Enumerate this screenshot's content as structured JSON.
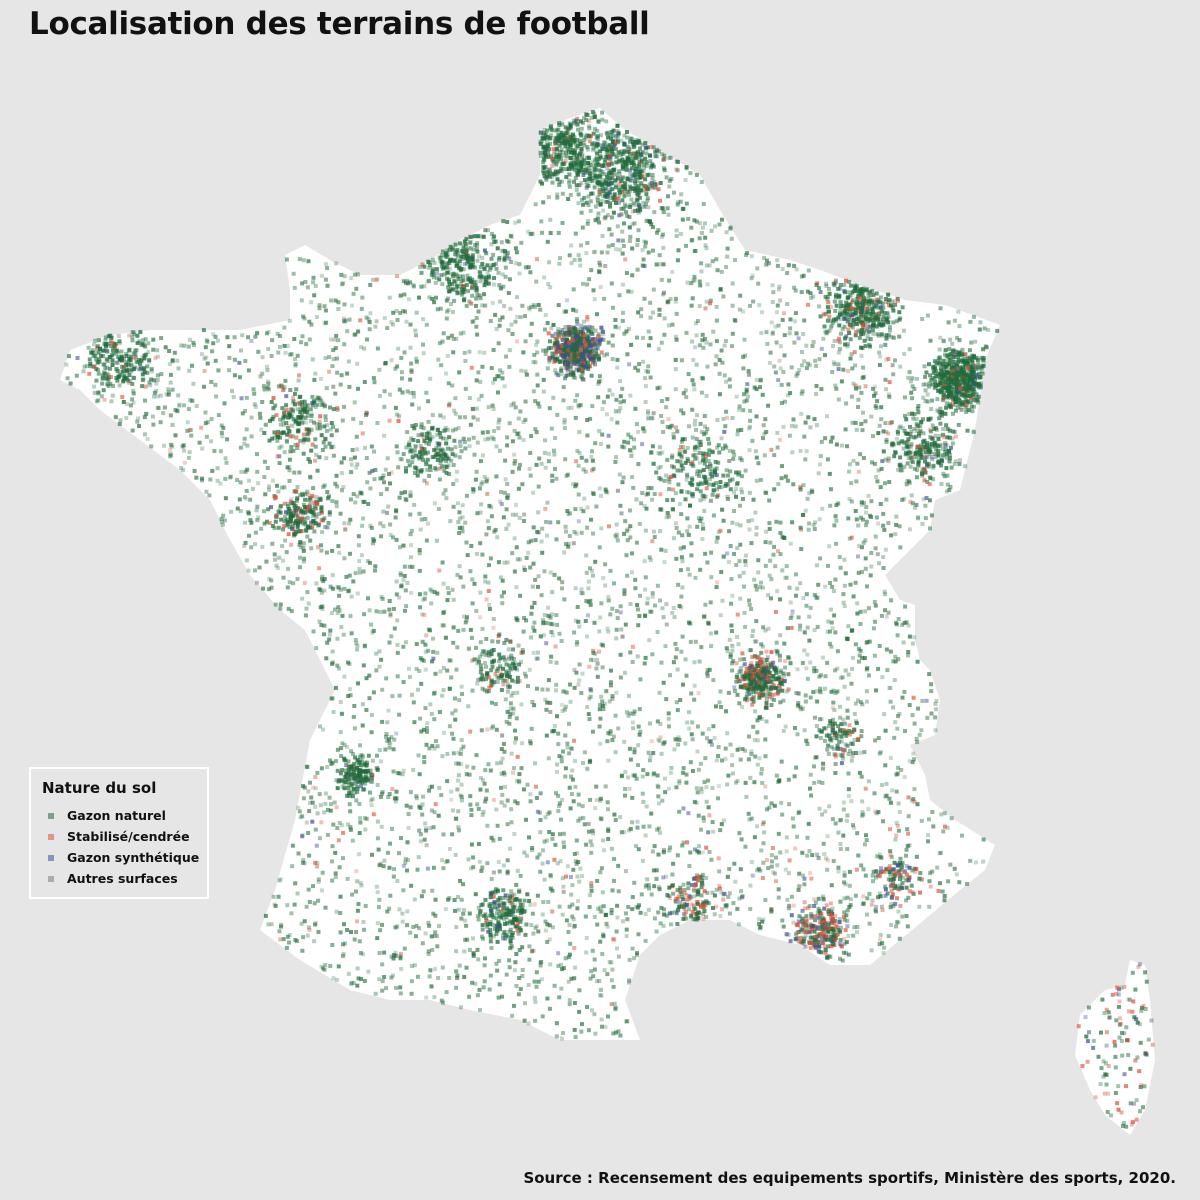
{
  "title": "Localisation des terrains de football",
  "legend": {
    "title": "Nature du sol",
    "items": [
      {
        "label": "Gazon naturel",
        "color": "#1f6b3a"
      },
      {
        "label": "Stabilisé/cendrée",
        "color": "#d9533a"
      },
      {
        "label": "Gazon synthétique",
        "color": "#3b4f96"
      },
      {
        "label": "Autres surfaces",
        "color": "#7b7b7b"
      }
    ]
  },
  "source": "Source : Recensement des equipements sportifs, Ministère des sports, 2020.",
  "colors": {
    "background": "#e6e6e6",
    "land": "#ffffff"
  }
}
